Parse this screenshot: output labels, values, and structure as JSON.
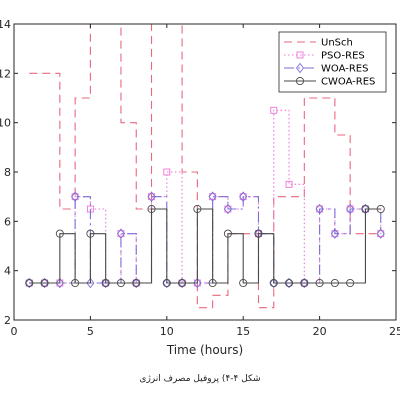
{
  "chart_data": {
    "type": "line",
    "title": "",
    "xlabel": "Time (hours)",
    "ylabel": "",
    "xlim": [
      0,
      25
    ],
    "ylim": [
      2,
      14
    ],
    "xticks": [
      0,
      5,
      10,
      15,
      20,
      25
    ],
    "yticks": [
      2,
      4,
      6,
      8,
      10,
      12,
      14
    ],
    "grid": false,
    "step": true,
    "legend_position": "top-right",
    "x": [
      1,
      2,
      3,
      4,
      5,
      6,
      7,
      8,
      9,
      10,
      11,
      12,
      13,
      14,
      15,
      16,
      17,
      18,
      19,
      20,
      21,
      22,
      23,
      24
    ],
    "series": [
      {
        "name": "UnSch",
        "color": "#e8697f",
        "dash": "8,5",
        "marker": "none",
        "values": [
          12,
          12,
          6.5,
          11,
          14,
          14,
          10,
          6.5,
          14,
          14,
          8,
          2.5,
          3,
          5.5,
          5.5,
          2.5,
          7,
          7,
          11,
          11,
          9.5,
          5.5,
          5.5,
          5.5
        ]
      },
      {
        "name": "PSO-RES",
        "color": "#ee74d8",
        "dash": "1.5,2.5",
        "marker": "square",
        "values": [
          3.5,
          3.5,
          3.5,
          7,
          6.5,
          3.5,
          5.5,
          3.5,
          7,
          8,
          3.5,
          3.5,
          7,
          6.5,
          7,
          5.5,
          10.5,
          7.5,
          3.5,
          6.5,
          5.5,
          6.5,
          6.5,
          5.5
        ]
      },
      {
        "name": "WOA-RES",
        "color": "#7b6fd6",
        "dash": "10,4,2,4",
        "marker": "diamond",
        "values": [
          3.5,
          3.5,
          3.5,
          7,
          3.5,
          3.5,
          5.5,
          3.5,
          7,
          3.5,
          3.5,
          3.5,
          7,
          6.5,
          7,
          5.5,
          3.5,
          3.5,
          3.5,
          6.5,
          5.5,
          6.5,
          6.5,
          5.5
        ]
      },
      {
        "name": "CWOA-RES",
        "color": "#4a4a4a",
        "dash": "none",
        "marker": "circle",
        "values": [
          3.5,
          3.5,
          5.5,
          3.5,
          5.5,
          3.5,
          3.5,
          3.5,
          6.5,
          3.5,
          3.5,
          6.5,
          3.5,
          5.5,
          3.5,
          5.5,
          3.5,
          3.5,
          3.5,
          3.5,
          3.5,
          3.5,
          6.5,
          6.5
        ]
      }
    ]
  },
  "caption": "شکل ۴-۴) پروفیل مصرف انرژی"
}
